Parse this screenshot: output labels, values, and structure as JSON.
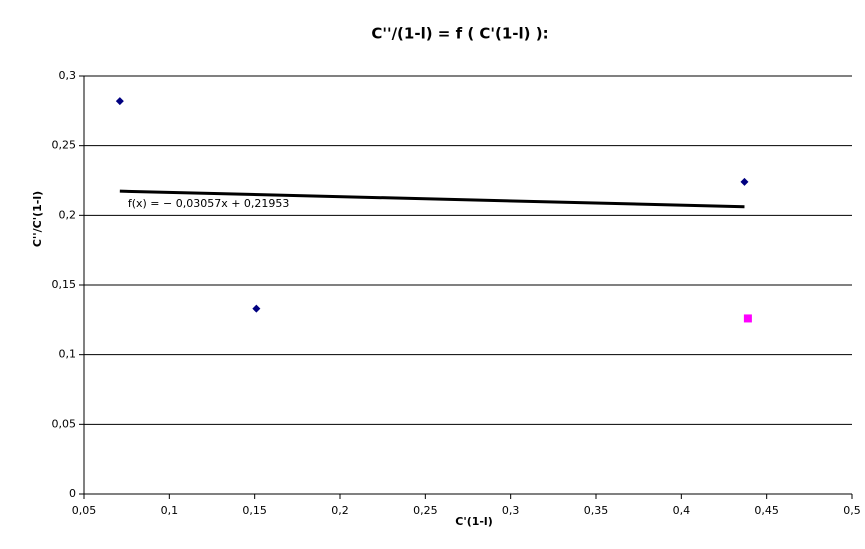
{
  "chart_data": {
    "type": "scatter",
    "title": "C''/(1-l) = f ( C'(1-l) ):",
    "x_label": "C'(1-l)",
    "y_label": "C''/C'(1-l)",
    "series": [
      {
        "color": "#000080",
        "marker": "diamond",
        "x": [
          0.071,
          0.151,
          0.437
        ],
        "values": [
          0.282,
          0.133,
          0.224
        ]
      },
      {
        "color": "#ff00ff",
        "marker": "square",
        "x": [
          0.439
        ],
        "values": [
          0.126
        ]
      }
    ],
    "trendline": {
      "label": "f(x) = − 0,03057x + 0,21953",
      "slope": -0.03057,
      "intercept": 0.21953,
      "x": [
        0.071,
        0.437
      ],
      "color": "#000000"
    },
    "xlim": [
      0.05,
      0.5
    ],
    "xticks": [
      {
        "value": 0.05,
        "label": "0,05"
      },
      {
        "value": 0.1,
        "label": "0,1"
      },
      {
        "value": 0.15,
        "label": "0,15"
      },
      {
        "value": 0.2,
        "label": "0,2"
      },
      {
        "value": 0.25,
        "label": "0,25"
      },
      {
        "value": 0.3,
        "label": "0,3"
      },
      {
        "value": 0.35,
        "label": "0,35"
      },
      {
        "value": 0.4,
        "label": "0,4"
      },
      {
        "value": 0.45,
        "label": "0,45"
      },
      {
        "value": 0.5,
        "label": "0,5"
      }
    ],
    "ylim": [
      0,
      0.3
    ],
    "yticks": [
      0,
      {
        "value": 0.05,
        "label": "0,05"
      },
      {
        "value": 0.1,
        "label": "0,1"
      },
      {
        "value": 0.15,
        "label": "0,15"
      },
      {
        "value": 0.2,
        "label": "0,2"
      },
      {
        "value": 0.25,
        "label": "0,25"
      },
      {
        "value": 0.3,
        "label": "0,3"
      }
    ],
    "grid": true
  }
}
